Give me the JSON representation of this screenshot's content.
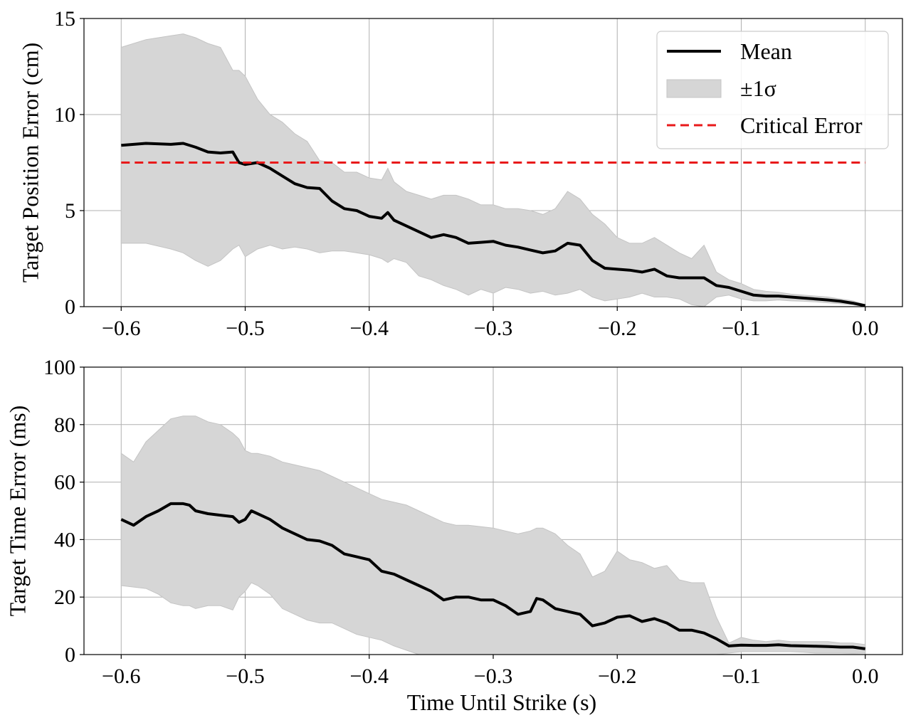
{
  "chart_data": [
    {
      "type": "line",
      "xlabel": "",
      "ylabel": "Target Position Error (cm)",
      "xlim": [
        -0.63,
        0.03
      ],
      "ylim": [
        0,
        15
      ],
      "xticks": [
        "−0.6",
        "−0.5",
        "−0.4",
        "−0.3",
        "−0.2",
        "−0.1",
        "0.0"
      ],
      "yticks": [
        "0",
        "5",
        "10",
        "15"
      ],
      "grid": true,
      "legend": {
        "placement": "top-right",
        "entries": [
          "Mean",
          "±1σ",
          "Critical Error"
        ]
      },
      "colors": {
        "mean": "#000000",
        "band": "#d6d6d6",
        "critical": "#e8191a"
      },
      "series": [
        {
          "name": "Mean",
          "x": [
            -0.6,
            -0.58,
            -0.56,
            -0.55,
            -0.54,
            -0.53,
            -0.52,
            -0.51,
            -0.505,
            -0.5,
            -0.49,
            -0.48,
            -0.47,
            -0.46,
            -0.45,
            -0.44,
            -0.43,
            -0.42,
            -0.41,
            -0.4,
            -0.39,
            -0.385,
            -0.38,
            -0.37,
            -0.36,
            -0.35,
            -0.34,
            -0.33,
            -0.32,
            -0.31,
            -0.3,
            -0.29,
            -0.28,
            -0.27,
            -0.26,
            -0.25,
            -0.24,
            -0.23,
            -0.22,
            -0.21,
            -0.2,
            -0.19,
            -0.18,
            -0.17,
            -0.16,
            -0.15,
            -0.14,
            -0.13,
            -0.12,
            -0.11,
            -0.1,
            -0.09,
            -0.08,
            -0.07,
            -0.06,
            -0.05,
            -0.04,
            -0.03,
            -0.02,
            -0.01,
            0.0
          ],
          "y": [
            8.4,
            8.5,
            8.45,
            8.5,
            8.3,
            8.05,
            8.0,
            8.05,
            7.5,
            7.4,
            7.5,
            7.2,
            6.8,
            6.4,
            6.2,
            6.15,
            5.5,
            5.1,
            5.0,
            4.7,
            4.6,
            4.9,
            4.5,
            4.2,
            3.9,
            3.6,
            3.75,
            3.6,
            3.3,
            3.35,
            3.4,
            3.2,
            3.1,
            2.95,
            2.8,
            2.9,
            3.3,
            3.2,
            2.4,
            2.0,
            1.95,
            1.9,
            1.8,
            1.95,
            1.6,
            1.5,
            1.5,
            1.5,
            1.1,
            1.0,
            0.8,
            0.6,
            0.55,
            0.55,
            0.5,
            0.45,
            0.4,
            0.35,
            0.28,
            0.18,
            0.05
          ]
        },
        {
          "name": "±1σ",
          "x": [
            -0.6,
            -0.58,
            -0.56,
            -0.55,
            -0.54,
            -0.53,
            -0.52,
            -0.51,
            -0.505,
            -0.5,
            -0.49,
            -0.48,
            -0.47,
            -0.46,
            -0.45,
            -0.44,
            -0.43,
            -0.42,
            -0.41,
            -0.4,
            -0.39,
            -0.385,
            -0.38,
            -0.37,
            -0.36,
            -0.35,
            -0.34,
            -0.33,
            -0.32,
            -0.31,
            -0.3,
            -0.29,
            -0.28,
            -0.27,
            -0.26,
            -0.25,
            -0.24,
            -0.23,
            -0.22,
            -0.21,
            -0.2,
            -0.19,
            -0.18,
            -0.17,
            -0.16,
            -0.15,
            -0.14,
            -0.13,
            -0.12,
            -0.11,
            -0.1,
            -0.09,
            -0.08,
            -0.07,
            -0.06,
            -0.05,
            -0.04,
            -0.03,
            -0.02,
            -0.01,
            0.0
          ],
          "upper": [
            13.5,
            13.9,
            14.1,
            14.2,
            14.0,
            13.7,
            13.5,
            12.3,
            12.3,
            12.0,
            10.8,
            10.0,
            9.6,
            9.0,
            8.6,
            7.6,
            7.5,
            7.0,
            7.0,
            6.7,
            6.6,
            7.2,
            6.5,
            6.0,
            5.8,
            5.6,
            5.8,
            5.8,
            5.6,
            5.3,
            5.3,
            5.1,
            5.1,
            5.0,
            4.8,
            5.1,
            6.0,
            5.6,
            4.8,
            4.3,
            3.6,
            3.3,
            3.3,
            3.6,
            3.2,
            2.8,
            2.5,
            3.2,
            1.8,
            1.4,
            1.2,
            0.9,
            0.8,
            0.75,
            0.65,
            0.6,
            0.55,
            0.5,
            0.4,
            0.3,
            0.1
          ],
          "lower": [
            3.3,
            3.3,
            3.0,
            2.8,
            2.4,
            2.1,
            2.4,
            3.0,
            3.2,
            2.6,
            3.0,
            3.2,
            3.0,
            3.1,
            3.0,
            2.8,
            2.9,
            2.9,
            2.8,
            2.7,
            2.5,
            2.3,
            2.5,
            2.3,
            1.6,
            1.4,
            1.1,
            0.9,
            0.6,
            0.9,
            0.7,
            1.0,
            0.9,
            0.7,
            0.8,
            0.6,
            0.7,
            0.9,
            0.5,
            0.3,
            0.4,
            0.5,
            0.7,
            0.5,
            0.5,
            0.4,
            0.1,
            0.0,
            0.5,
            0.6,
            0.4,
            0.3,
            0.3,
            0.35,
            0.3,
            0.28,
            0.25,
            0.2,
            0.15,
            0.1,
            0.0
          ]
        },
        {
          "name": "Critical Error",
          "x": [
            -0.6,
            0.0
          ],
          "y": [
            7.5,
            7.5
          ]
        }
      ]
    },
    {
      "type": "line",
      "xlabel": "Time Until Strike (s)",
      "ylabel": "Target Time Error (ms)",
      "xlim": [
        -0.63,
        0.03
      ],
      "ylim": [
        0,
        100
      ],
      "xticks": [
        "−0.6",
        "−0.5",
        "−0.4",
        "−0.3",
        "−0.2",
        "−0.1",
        "0.0"
      ],
      "yticks": [
        "0",
        "20",
        "40",
        "60",
        "80",
        "100"
      ],
      "grid": true,
      "colors": {
        "mean": "#000000",
        "band": "#d6d6d6"
      },
      "series": [
        {
          "name": "Mean",
          "x": [
            -0.6,
            -0.59,
            -0.58,
            -0.57,
            -0.56,
            -0.55,
            -0.545,
            -0.54,
            -0.53,
            -0.52,
            -0.51,
            -0.505,
            -0.5,
            -0.495,
            -0.49,
            -0.48,
            -0.47,
            -0.46,
            -0.45,
            -0.44,
            -0.43,
            -0.42,
            -0.41,
            -0.4,
            -0.39,
            -0.38,
            -0.37,
            -0.36,
            -0.35,
            -0.34,
            -0.33,
            -0.32,
            -0.31,
            -0.3,
            -0.29,
            -0.28,
            -0.27,
            -0.265,
            -0.26,
            -0.25,
            -0.24,
            -0.23,
            -0.22,
            -0.21,
            -0.2,
            -0.19,
            -0.18,
            -0.17,
            -0.16,
            -0.15,
            -0.14,
            -0.13,
            -0.12,
            -0.11,
            -0.1,
            -0.09,
            -0.08,
            -0.07,
            -0.06,
            -0.05,
            -0.04,
            -0.03,
            -0.02,
            -0.01,
            0.0
          ],
          "y": [
            47,
            45,
            48,
            50,
            52.5,
            52.5,
            52,
            50,
            49,
            48.5,
            48,
            46,
            47,
            50,
            49,
            47,
            44,
            42,
            40,
            39.5,
            38,
            35,
            34,
            33,
            29,
            28,
            26,
            24,
            22,
            19,
            20,
            20,
            19,
            19,
            17,
            14,
            15,
            19.5,
            19,
            16,
            15,
            14,
            10,
            11,
            13,
            13.5,
            11.5,
            12.5,
            11,
            8.5,
            8.5,
            7.5,
            5.5,
            3,
            3.3,
            3.2,
            3.2,
            3.4,
            3.1,
            3,
            2.9,
            2.8,
            2.6,
            2.6,
            2.0
          ]
        },
        {
          "name": "±1σ",
          "x": [
            -0.6,
            -0.59,
            -0.58,
            -0.57,
            -0.56,
            -0.55,
            -0.545,
            -0.54,
            -0.53,
            -0.52,
            -0.51,
            -0.505,
            -0.5,
            -0.495,
            -0.49,
            -0.48,
            -0.47,
            -0.46,
            -0.45,
            -0.44,
            -0.43,
            -0.42,
            -0.41,
            -0.4,
            -0.39,
            -0.38,
            -0.37,
            -0.36,
            -0.35,
            -0.34,
            -0.33,
            -0.32,
            -0.31,
            -0.3,
            -0.29,
            -0.28,
            -0.27,
            -0.265,
            -0.26,
            -0.25,
            -0.24,
            -0.23,
            -0.22,
            -0.21,
            -0.2,
            -0.19,
            -0.18,
            -0.17,
            -0.16,
            -0.15,
            -0.14,
            -0.13,
            -0.12,
            -0.11,
            -0.1,
            -0.09,
            -0.08,
            -0.07,
            -0.06,
            -0.05,
            -0.04,
            -0.03,
            -0.02,
            -0.01,
            0.0
          ],
          "upper": [
            70,
            67,
            74,
            78,
            82,
            83,
            83,
            83,
            81,
            80,
            77,
            75,
            71,
            70,
            70,
            69,
            67,
            66,
            65,
            64,
            62,
            60,
            58,
            56,
            54,
            53,
            52,
            50,
            48,
            46,
            45,
            45,
            44.5,
            44,
            43,
            42,
            43,
            44,
            44,
            42,
            38,
            35,
            27,
            29,
            36,
            33,
            32,
            30,
            31,
            26,
            25,
            25,
            13,
            4,
            6,
            5,
            4.5,
            5,
            4.5,
            4.5,
            4.5,
            4.5,
            4,
            4,
            3.5
          ],
          "lower": [
            24,
            23.5,
            23,
            21,
            18,
            17,
            17,
            16,
            17,
            17,
            15.5,
            20,
            22,
            25,
            24,
            21,
            16,
            14,
            12,
            11,
            11,
            9,
            7,
            6,
            5,
            3,
            1.5,
            0,
            0,
            0,
            0,
            0,
            0,
            0,
            0,
            0,
            0,
            0,
            0,
            0,
            0,
            0,
            0,
            0,
            0,
            0,
            0,
            0,
            0,
            0,
            0,
            0,
            0,
            0.5,
            1,
            1,
            1,
            1,
            1,
            0.8,
            0.5,
            0.5,
            0.5,
            0.4,
            0.5
          ]
        }
      ]
    }
  ]
}
